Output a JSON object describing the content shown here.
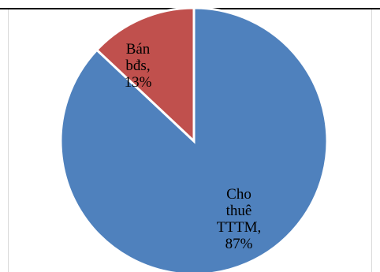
{
  "chart_data": {
    "type": "pie",
    "categories": [
      "Cho thuê TTTM",
      "Bán bđs"
    ],
    "values": [
      87,
      13
    ],
    "unit": "%",
    "colors": [
      "#4f81bd",
      "#c0504d"
    ],
    "legend": "none",
    "label_lines": [
      [
        "Cho",
        "thuê",
        "TTTM,",
        "87%"
      ],
      [
        "Bán",
        "bđs,",
        "13%"
      ]
    ]
  }
}
